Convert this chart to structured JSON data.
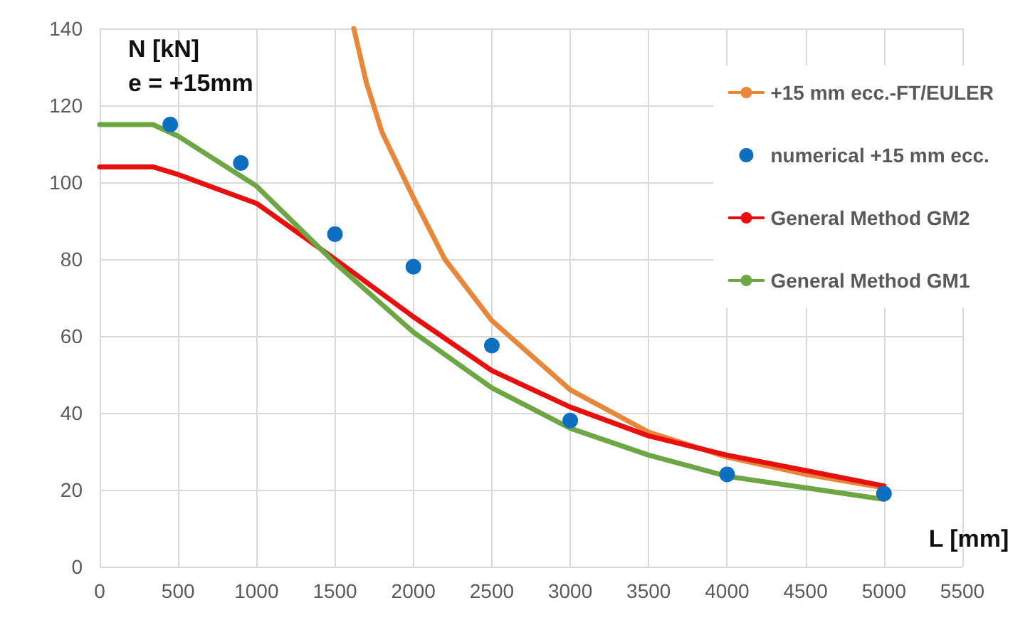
{
  "chart_data": {
    "type": "line",
    "ylabel": "N [kN]",
    "xlabel": "L [mm]",
    "annotations": [
      "e = +15mm"
    ],
    "xlim": [
      0,
      5500
    ],
    "xticks": [
      0,
      500,
      1000,
      1500,
      2000,
      2500,
      3000,
      3500,
      4000,
      4500,
      5000,
      5500
    ],
    "ylim": [
      0,
      140
    ],
    "yticks": [
      0,
      20,
      40,
      60,
      80,
      100,
      120,
      140
    ],
    "grid": true,
    "legend": "right",
    "marker": "none",
    "line_style": "solid",
    "series": [
      {
        "name": "+15 mm ecc.-FT/EULER",
        "color": "#e8873a",
        "x": [
          1620,
          1700,
          1800,
          2000,
          2200,
          2500,
          3000,
          3500,
          4000,
          4500,
          5000
        ],
        "values": [
          140,
          126,
          113,
          96,
          80,
          64,
          46,
          35,
          28.5,
          24,
          20.5
        ]
      },
      {
        "name": "numerical +15 mm ecc.",
        "type": "scatter",
        "marker": "circle",
        "color": "#0e6fc1",
        "x": [
          450,
          900,
          1500,
          2000,
          2500,
          3000,
          4000,
          5000
        ],
        "values": [
          115,
          105,
          86.5,
          78,
          57.5,
          38,
          24,
          19
        ]
      },
      {
        "name": "General Method GM2",
        "color": "#e8100f",
        "x": [
          0,
          340,
          500,
          1000,
          1500,
          2000,
          2500,
          3000,
          3500,
          4000,
          4500,
          5000
        ],
        "values": [
          104,
          104,
          102,
          94.5,
          80,
          65,
          51,
          41.5,
          34,
          29,
          25,
          21
        ]
      },
      {
        "name": "General Method GM1",
        "color": "#6ca744",
        "x": [
          0,
          340,
          500,
          1000,
          1500,
          2000,
          2500,
          3000,
          3500,
          4000,
          4500,
          5000
        ],
        "values": [
          115,
          115,
          112,
          99,
          79,
          61,
          46.5,
          36,
          29,
          23.5,
          20.5,
          17.5
        ]
      }
    ]
  }
}
